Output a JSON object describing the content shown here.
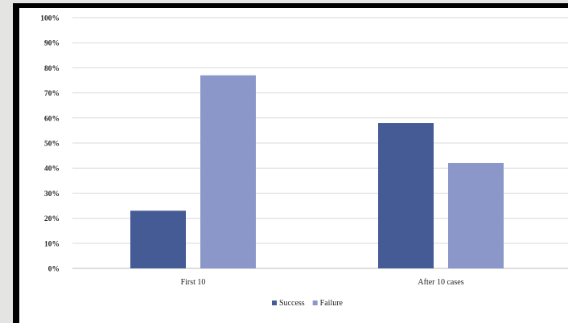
{
  "chart_data": {
    "type": "bar",
    "categories": [
      "First 10",
      "After 10 cases"
    ],
    "series": [
      {
        "name": "Success",
        "values": [
          23,
          58
        ],
        "color": "#455b96"
      },
      {
        "name": "Failure",
        "values": [
          77,
          42
        ],
        "color": "#8a97c8"
      }
    ],
    "ylim": [
      0,
      100
    ],
    "yticks": [
      "0%",
      "10%",
      "20%",
      "30%",
      "40%",
      "50%",
      "60%",
      "70%",
      "80%",
      "90%",
      "100%"
    ],
    "y_unit": "percent",
    "grid": true,
    "legend_position": "bottom",
    "title": "",
    "xlabel": "",
    "ylabel": ""
  }
}
